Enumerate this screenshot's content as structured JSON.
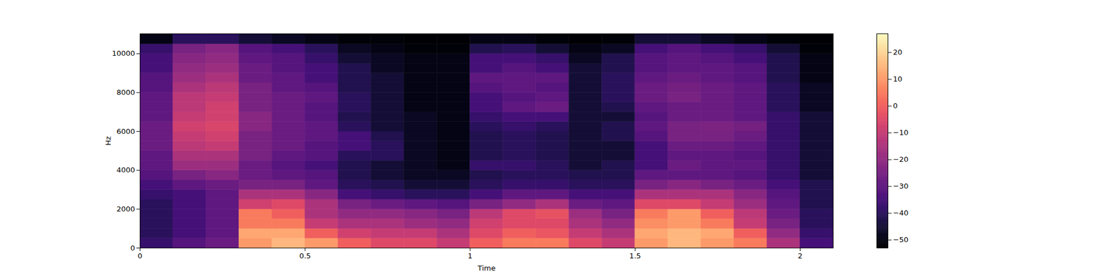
{
  "chart_data": {
    "type": "heatmap",
    "xlabel": "Time",
    "ylabel": "Hz",
    "xlim": [
      0,
      2.1
    ],
    "xticks": [
      0,
      0.5,
      1,
      1.5,
      2
    ],
    "ylim": [
      0,
      11025
    ],
    "yticks": [
      0,
      2000,
      4000,
      6000,
      8000,
      10000
    ],
    "color": "magma",
    "x_bins": [
      0,
      0.1,
      0.2,
      0.3,
      0.4,
      0.5,
      0.6,
      0.7,
      0.8,
      0.9,
      1.0,
      1.1,
      1.2,
      1.3,
      1.4,
      1.5,
      1.6,
      1.7,
      1.8,
      1.9,
      2.0,
      2.1
    ],
    "y_bins": [
      0,
      500,
      1000,
      1500,
      2000,
      2500,
      3000,
      3500,
      4000,
      4500,
      5000,
      5500,
      6000,
      6500,
      7000,
      7500,
      8000,
      8500,
      9000,
      9500,
      10000,
      10500,
      11025
    ],
    "cells": [
      [
        -38,
        -32,
        -28,
        10,
        15,
        10,
        0,
        -5,
        -5,
        -10,
        0,
        5,
        5,
        -5,
        -10,
        10,
        15,
        10,
        5,
        -15,
        -35
      ],
      [
        -40,
        -35,
        -30,
        12,
        12,
        0,
        -8,
        -10,
        -10,
        -15,
        -5,
        0,
        -2,
        -10,
        -15,
        12,
        15,
        12,
        0,
        -20,
        -38
      ],
      [
        -40,
        -35,
        -30,
        5,
        5,
        -10,
        -15,
        -15,
        -18,
        -20,
        -8,
        -5,
        -5,
        -15,
        -20,
        8,
        10,
        5,
        -10,
        -25,
        -40
      ],
      [
        -40,
        -35,
        -30,
        5,
        0,
        -15,
        -20,
        -20,
        -22,
        -25,
        -12,
        -5,
        -3,
        -18,
        -25,
        5,
        10,
        0,
        -12,
        -28,
        -40
      ],
      [
        -40,
        -35,
        -30,
        -8,
        -5,
        -15,
        -25,
        -28,
        -30,
        -32,
        -25,
        -20,
        -15,
        -28,
        -30,
        -5,
        -5,
        -10,
        -18,
        -30,
        -42
      ],
      [
        -38,
        -35,
        -30,
        -15,
        -15,
        -22,
        -35,
        -38,
        -40,
        -40,
        -35,
        -30,
        -30,
        -35,
        -35,
        -15,
        -15,
        -15,
        -22,
        -32,
        -42
      ],
      [
        -35,
        -30,
        -28,
        -25,
        -25,
        -30,
        -40,
        -42,
        -45,
        -45,
        -40,
        -38,
        -38,
        -40,
        -40,
        -25,
        -22,
        -25,
        -28,
        -35,
        -42
      ],
      [
        -32,
        -25,
        -22,
        -28,
        -30,
        -32,
        -42,
        -45,
        -48,
        -48,
        -42,
        -40,
        -40,
        -42,
        -42,
        -30,
        -30,
        -30,
        -32,
        -38,
        -45
      ],
      [
        -30,
        -18,
        -18,
        -28,
        -32,
        -35,
        -42,
        -45,
        -48,
        -50,
        -38,
        -38,
        -40,
        -45,
        -42,
        -35,
        -28,
        -30,
        -30,
        -38,
        -45
      ],
      [
        -30,
        -15,
        -15,
        -25,
        -30,
        -32,
        -40,
        -40,
        -48,
        -50,
        -42,
        -40,
        -42,
        -45,
        -45,
        -35,
        -30,
        -30,
        -32,
        -38,
        -45
      ],
      [
        -28,
        -12,
        -10,
        -25,
        -28,
        -32,
        -35,
        -40,
        -48,
        -50,
        -42,
        -40,
        -42,
        -45,
        -45,
        -35,
        -28,
        -28,
        -30,
        -38,
        -45
      ],
      [
        -28,
        -10,
        -8,
        -25,
        -28,
        -30,
        -35,
        -42,
        -48,
        -50,
        -42,
        -40,
        -42,
        -45,
        -42,
        -32,
        -25,
        -25,
        -28,
        -38,
        -45
      ],
      [
        -28,
        -8,
        -6,
        -22,
        -28,
        -30,
        -40,
        -45,
        -48,
        -50,
        -40,
        -38,
        -40,
        -45,
        -42,
        -30,
        -25,
        -24,
        -26,
        -38,
        -45
      ],
      [
        -30,
        -10,
        -8,
        -22,
        -28,
        -32,
        -42,
        -45,
        -48,
        -50,
        -38,
        -35,
        -35,
        -45,
        -45,
        -32,
        -28,
        -28,
        -30,
        -38,
        -45
      ],
      [
        -30,
        -12,
        -8,
        -25,
        -28,
        -32,
        -40,
        -45,
        -50,
        -50,
        -35,
        -30,
        -28,
        -45,
        -42,
        -30,
        -28,
        -28,
        -30,
        -40,
        -48
      ],
      [
        -30,
        -12,
        -10,
        -25,
        -28,
        -30,
        -40,
        -45,
        -50,
        -50,
        -35,
        -32,
        -30,
        -45,
        -40,
        -28,
        -25,
        -28,
        -30,
        -40,
        -48
      ],
      [
        -32,
        -15,
        -12,
        -25,
        -30,
        -32,
        -42,
        -45,
        -50,
        -50,
        -32,
        -30,
        -32,
        -45,
        -40,
        -28,
        -26,
        -28,
        -30,
        -40,
        -48
      ],
      [
        -32,
        -18,
        -15,
        -28,
        -30,
        -35,
        -42,
        -45,
        -50,
        -50,
        -30,
        -30,
        -30,
        -45,
        -40,
        -30,
        -28,
        -30,
        -32,
        -42,
        -50
      ],
      [
        -35,
        -20,
        -18,
        -28,
        -32,
        -35,
        -42,
        -48,
        -50,
        -50,
        -35,
        -32,
        -35,
        -45,
        -42,
        -32,
        -30,
        -30,
        -32,
        -42,
        -50
      ],
      [
        -35,
        -22,
        -20,
        -30,
        -32,
        -38,
        -45,
        -48,
        -50,
        -50,
        -35,
        -35,
        -38,
        -48,
        -42,
        -32,
        -30,
        -32,
        -35,
        -42,
        -50
      ],
      [
        -38,
        -25,
        -22,
        -32,
        -35,
        -40,
        -48,
        -50,
        -52,
        -52,
        -42,
        -40,
        -45,
        -50,
        -48,
        -35,
        -32,
        -35,
        -38,
        -45,
        -52
      ],
      [
        -50,
        -40,
        -40,
        -45,
        -48,
        -50,
        -52,
        -52,
        -53,
        -53,
        -50,
        -50,
        -52,
        -53,
        -52,
        -45,
        -45,
        -48,
        -50,
        -52,
        -53
      ]
    ],
    "colorbar": {
      "range": [
        -53,
        27
      ],
      "ticks": [
        -50,
        -40,
        -30,
        -20,
        -10,
        0,
        10,
        20
      ]
    }
  }
}
